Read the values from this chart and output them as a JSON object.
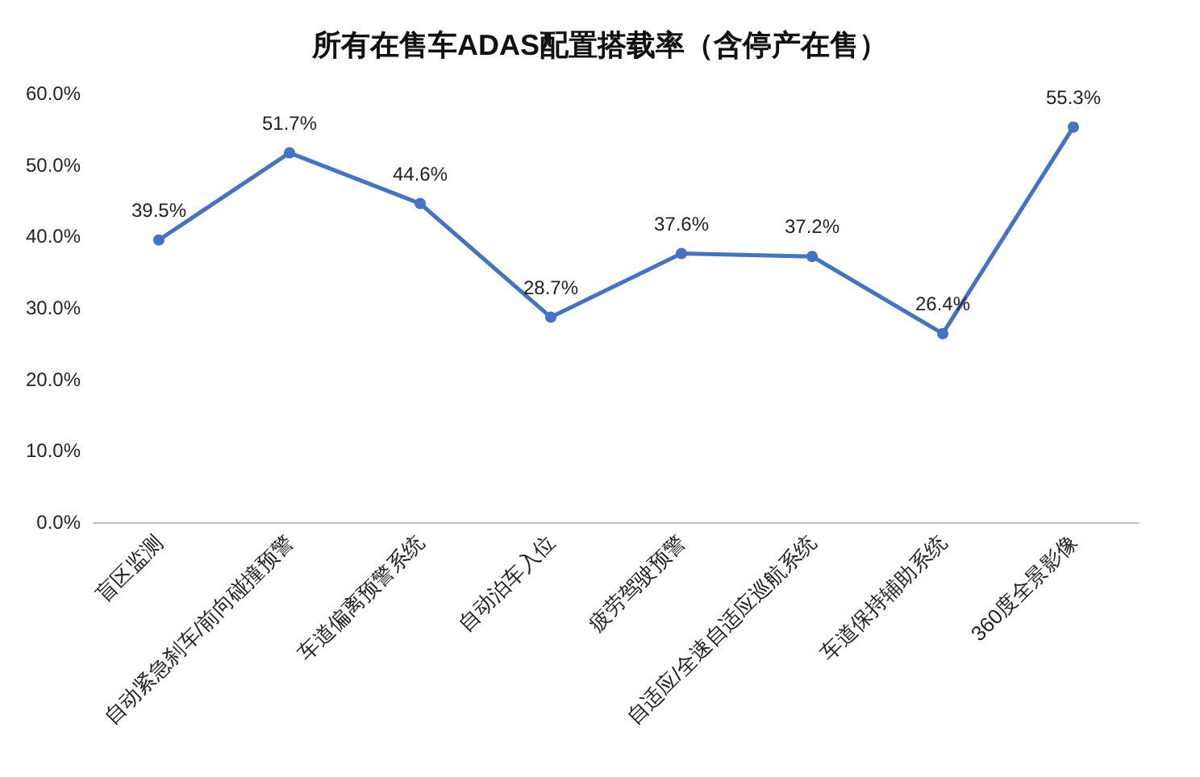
{
  "chart_data": {
    "type": "line",
    "title": "所有在售车ADAS配置搭载率（含停产在售）",
    "categories": [
      "盲区监测",
      "自动紧急刹车/前向碰撞预警",
      "车道偏离预警系统",
      "自动泊车入位",
      "疲劳驾驶预警",
      "自适应/全速自适应巡航系统",
      "车道保持辅助系统",
      "360度全景影像"
    ],
    "series": [
      {
        "color": "#4472c4",
        "values": [
          39.5,
          51.7,
          44.6,
          28.7,
          37.6,
          37.2,
          26.4,
          55.3
        ],
        "value_labels": [
          "39.5%",
          "51.7%",
          "44.6%",
          "28.7%",
          "37.6%",
          "37.2%",
          "26.4%",
          "55.3%"
        ]
      }
    ],
    "ylim": [
      0,
      60
    ],
    "yticks": [
      {
        "value": 0,
        "label": "0.0%"
      },
      {
        "value": 10,
        "label": "10.0%"
      },
      {
        "value": 20,
        "label": "20.0%"
      },
      {
        "value": 30,
        "label": "30.0%"
      },
      {
        "value": 40,
        "label": "40.0%"
      },
      {
        "value": 50,
        "label": "50.0%"
      },
      {
        "value": 60,
        "label": "60.0%"
      }
    ],
    "marker": "circle",
    "line_style": "solid",
    "grid": false
  }
}
